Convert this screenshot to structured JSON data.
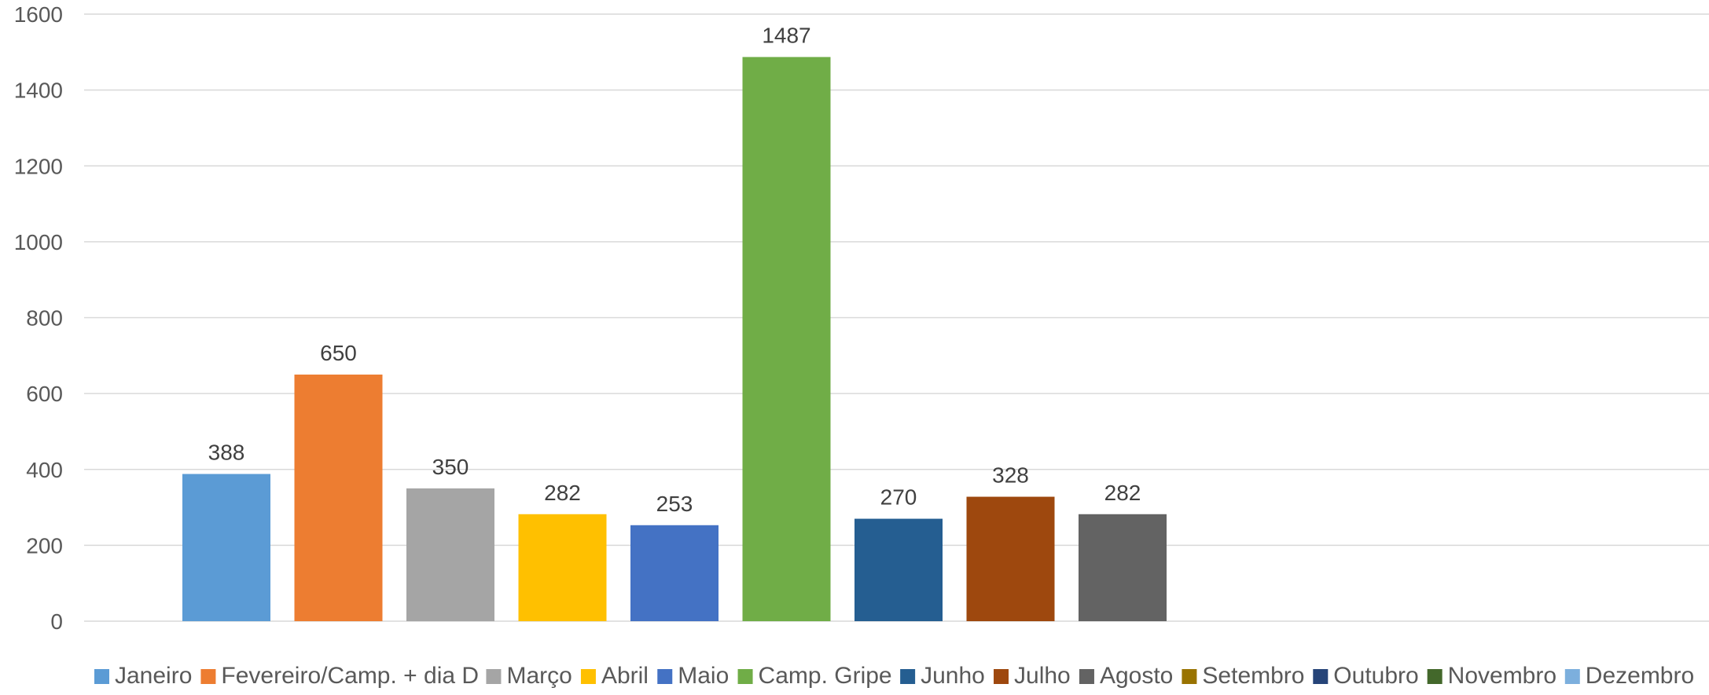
{
  "chart_data": {
    "type": "bar",
    "title": "",
    "xlabel": "",
    "ylabel": "",
    "ylim": [
      0,
      1600
    ],
    "yticks": [
      0,
      200,
      400,
      600,
      800,
      1000,
      1200,
      1400,
      1600
    ],
    "grid": true,
    "legend_position": "bottom",
    "series": [
      {
        "name": "Janeiro",
        "value": 388,
        "color": "#5B9BD5"
      },
      {
        "name": "Fevereiro/Camp. + dia D",
        "value": 650,
        "color": "#ED7D31"
      },
      {
        "name": "Março",
        "value": 350,
        "color": "#A5A5A5"
      },
      {
        "name": "Abril",
        "value": 282,
        "color": "#FFC000"
      },
      {
        "name": "Maio",
        "value": 253,
        "color": "#4472C4"
      },
      {
        "name": "Camp. Gripe",
        "value": 1487,
        "color": "#70AD47"
      },
      {
        "name": "Junho",
        "value": 270,
        "color": "#255E91"
      },
      {
        "name": "Julho",
        "value": 328,
        "color": "#9E480E"
      },
      {
        "name": "Agosto",
        "value": 282,
        "color": "#636363"
      },
      {
        "name": "Setembro",
        "value": null,
        "color": "#997300"
      },
      {
        "name": "Outubro",
        "value": null,
        "color": "#264478"
      },
      {
        "name": "Novembro",
        "value": null,
        "color": "#43682B"
      },
      {
        "name": "Dezembro",
        "value": null,
        "color": "#7CAFDD"
      }
    ]
  }
}
